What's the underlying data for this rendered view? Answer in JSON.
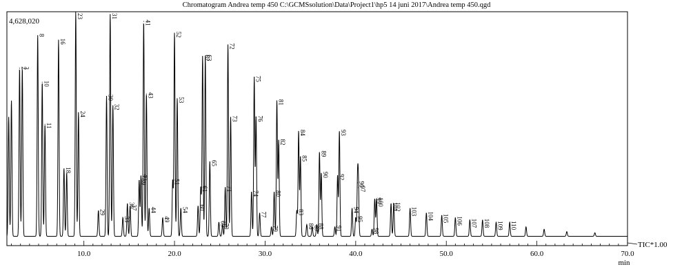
{
  "chart_data": {
    "type": "line",
    "title": "Chromatogram Andrea temp 450 C:\\GCMSsolution\\Data\\Project1\\hp5 14 juni 2017\\Andrea temp 450.qgd",
    "y_max_label": "4,628,020",
    "trace_label": "TIC*1.00",
    "xlabel": "min",
    "xlim": [
      1.5,
      70.0
    ],
    "ylim": [
      0,
      4628020
    ],
    "x_ticks": [
      "10.0",
      "20.0",
      "30.0",
      "40.0",
      "50.0",
      "60.0",
      "70.0"
    ],
    "x_tick_values": [
      10,
      20,
      30,
      40,
      50,
      60,
      70
    ],
    "baseline_fraction": 0.04,
    "peaks": [
      {
        "label": "",
        "x": 1.7,
        "y": 0.55
      },
      {
        "label": "",
        "x": 2.0,
        "y": 0.62
      },
      {
        "label": "2",
        "x": 2.9,
        "y": 0.76
      },
      {
        "label": "3",
        "x": 3.2,
        "y": 0.76
      },
      {
        "label": "8",
        "x": 4.9,
        "y": 0.9
      },
      {
        "label": "10",
        "x": 5.4,
        "y": 0.7
      },
      {
        "label": "11",
        "x": 5.7,
        "y": 0.52
      },
      {
        "label": "16",
        "x": 7.2,
        "y": 0.88
      },
      {
        "label": "18",
        "x": 7.8,
        "y": 0.33
      },
      {
        "label": "",
        "x": 8.1,
        "y": 0.31
      },
      {
        "label": "23",
        "x": 9.1,
        "y": 1.0
      },
      {
        "label": "24",
        "x": 9.4,
        "y": 0.57
      },
      {
        "label": "29",
        "x": 11.6,
        "y": 0.15
      },
      {
        "label": "30",
        "x": 12.5,
        "y": 0.64
      },
      {
        "label": "31",
        "x": 12.9,
        "y": 0.99
      },
      {
        "label": "32",
        "x": 13.2,
        "y": 0.6
      },
      {
        "label": "33",
        "x": 14.3,
        "y": 0.12
      },
      {
        "label": "36",
        "x": 14.8,
        "y": 0.18
      },
      {
        "label": "37",
        "x": 15.1,
        "y": 0.17
      },
      {
        "label": "39",
        "x": 16.1,
        "y": 0.28
      },
      {
        "label": "40",
        "x": 16.3,
        "y": 0.3
      },
      {
        "label": "41",
        "x": 16.6,
        "y": 0.96
      },
      {
        "label": "43",
        "x": 16.9,
        "y": 0.65
      },
      {
        "label": "44",
        "x": 17.2,
        "y": 0.16
      },
      {
        "label": "49",
        "x": 18.7,
        "y": 0.12
      },
      {
        "label": "51",
        "x": 19.8,
        "y": 0.28
      },
      {
        "label": "52",
        "x": 20.0,
        "y": 0.91
      },
      {
        "label": "53",
        "x": 20.3,
        "y": 0.63
      },
      {
        "label": "54",
        "x": 20.7,
        "y": 0.16
      },
      {
        "label": "60",
        "x": 22.6,
        "y": 0.17
      },
      {
        "label": "61",
        "x": 22.9,
        "y": 0.25
      },
      {
        "label": "62",
        "x": 23.1,
        "y": 0.81
      },
      {
        "label": "63",
        "x": 23.4,
        "y": 0.81
      },
      {
        "label": "65",
        "x": 23.9,
        "y": 0.36
      },
      {
        "label": "69",
        "x": 24.9,
        "y": 0.1
      },
      {
        "label": "70",
        "x": 25.3,
        "y": 0.09
      },
      {
        "label": "71",
        "x": 25.6,
        "y": 0.25
      },
      {
        "label": "72",
        "x": 25.9,
        "y": 0.86
      },
      {
        "label": "73",
        "x": 26.2,
        "y": 0.55
      },
      {
        "label": "74",
        "x": 28.5,
        "y": 0.23
      },
      {
        "label": "75",
        "x": 28.8,
        "y": 0.72
      },
      {
        "label": "76",
        "x": 29.0,
        "y": 0.55
      },
      {
        "label": "77",
        "x": 29.4,
        "y": 0.14
      },
      {
        "label": "79",
        "x": 30.7,
        "y": 0.08
      },
      {
        "label": "80",
        "x": 31.0,
        "y": 0.23
      },
      {
        "label": "81",
        "x": 31.3,
        "y": 0.62
      },
      {
        "label": "82",
        "x": 31.5,
        "y": 0.45
      },
      {
        "label": "83",
        "x": 33.5,
        "y": 0.15
      },
      {
        "label": "84",
        "x": 33.7,
        "y": 0.49
      },
      {
        "label": "85",
        "x": 33.9,
        "y": 0.38
      },
      {
        "label": "86",
        "x": 34.6,
        "y": 0.09
      },
      {
        "label": "87",
        "x": 35.2,
        "y": 0.08
      },
      {
        "label": "88",
        "x": 35.7,
        "y": 0.09
      },
      {
        "label": "89",
        "x": 36.0,
        "y": 0.4
      },
      {
        "label": "90",
        "x": 36.2,
        "y": 0.31
      },
      {
        "label": "91",
        "x": 37.7,
        "y": 0.08
      },
      {
        "label": "92",
        "x": 38.0,
        "y": 0.3
      },
      {
        "label": "93",
        "x": 38.2,
        "y": 0.49
      },
      {
        "label": "94",
        "x": 39.6,
        "y": 0.16
      },
      {
        "label": "95",
        "x": 40.0,
        "y": 0.12
      },
      {
        "label": "96",
        "x": 40.2,
        "y": 0.27
      },
      {
        "label": "97",
        "x": 40.3,
        "y": 0.25
      },
      {
        "label": "98",
        "x": 41.8,
        "y": 0.07
      },
      {
        "label": "99",
        "x": 42.1,
        "y": 0.2
      },
      {
        "label": "100",
        "x": 42.3,
        "y": 0.2
      },
      {
        "label": "101",
        "x": 43.9,
        "y": 0.18
      },
      {
        "label": "102",
        "x": 44.2,
        "y": 0.18
      },
      {
        "label": "103",
        "x": 46.0,
        "y": 0.16
      },
      {
        "label": "104",
        "x": 47.8,
        "y": 0.14
      },
      {
        "label": "105",
        "x": 49.5,
        "y": 0.13
      },
      {
        "label": "106",
        "x": 51.0,
        "y": 0.12
      },
      {
        "label": "107",
        "x": 52.6,
        "y": 0.11
      },
      {
        "label": "108",
        "x": 54.0,
        "y": 0.11
      },
      {
        "label": "109",
        "x": 55.5,
        "y": 0.1
      },
      {
        "label": "110",
        "x": 57.0,
        "y": 0.1
      },
      {
        "label": "",
        "x": 58.8,
        "y": 0.08
      },
      {
        "label": "",
        "x": 60.8,
        "y": 0.07
      },
      {
        "label": "",
        "x": 63.3,
        "y": 0.06
      },
      {
        "label": "",
        "x": 66.4,
        "y": 0.055
      }
    ]
  }
}
